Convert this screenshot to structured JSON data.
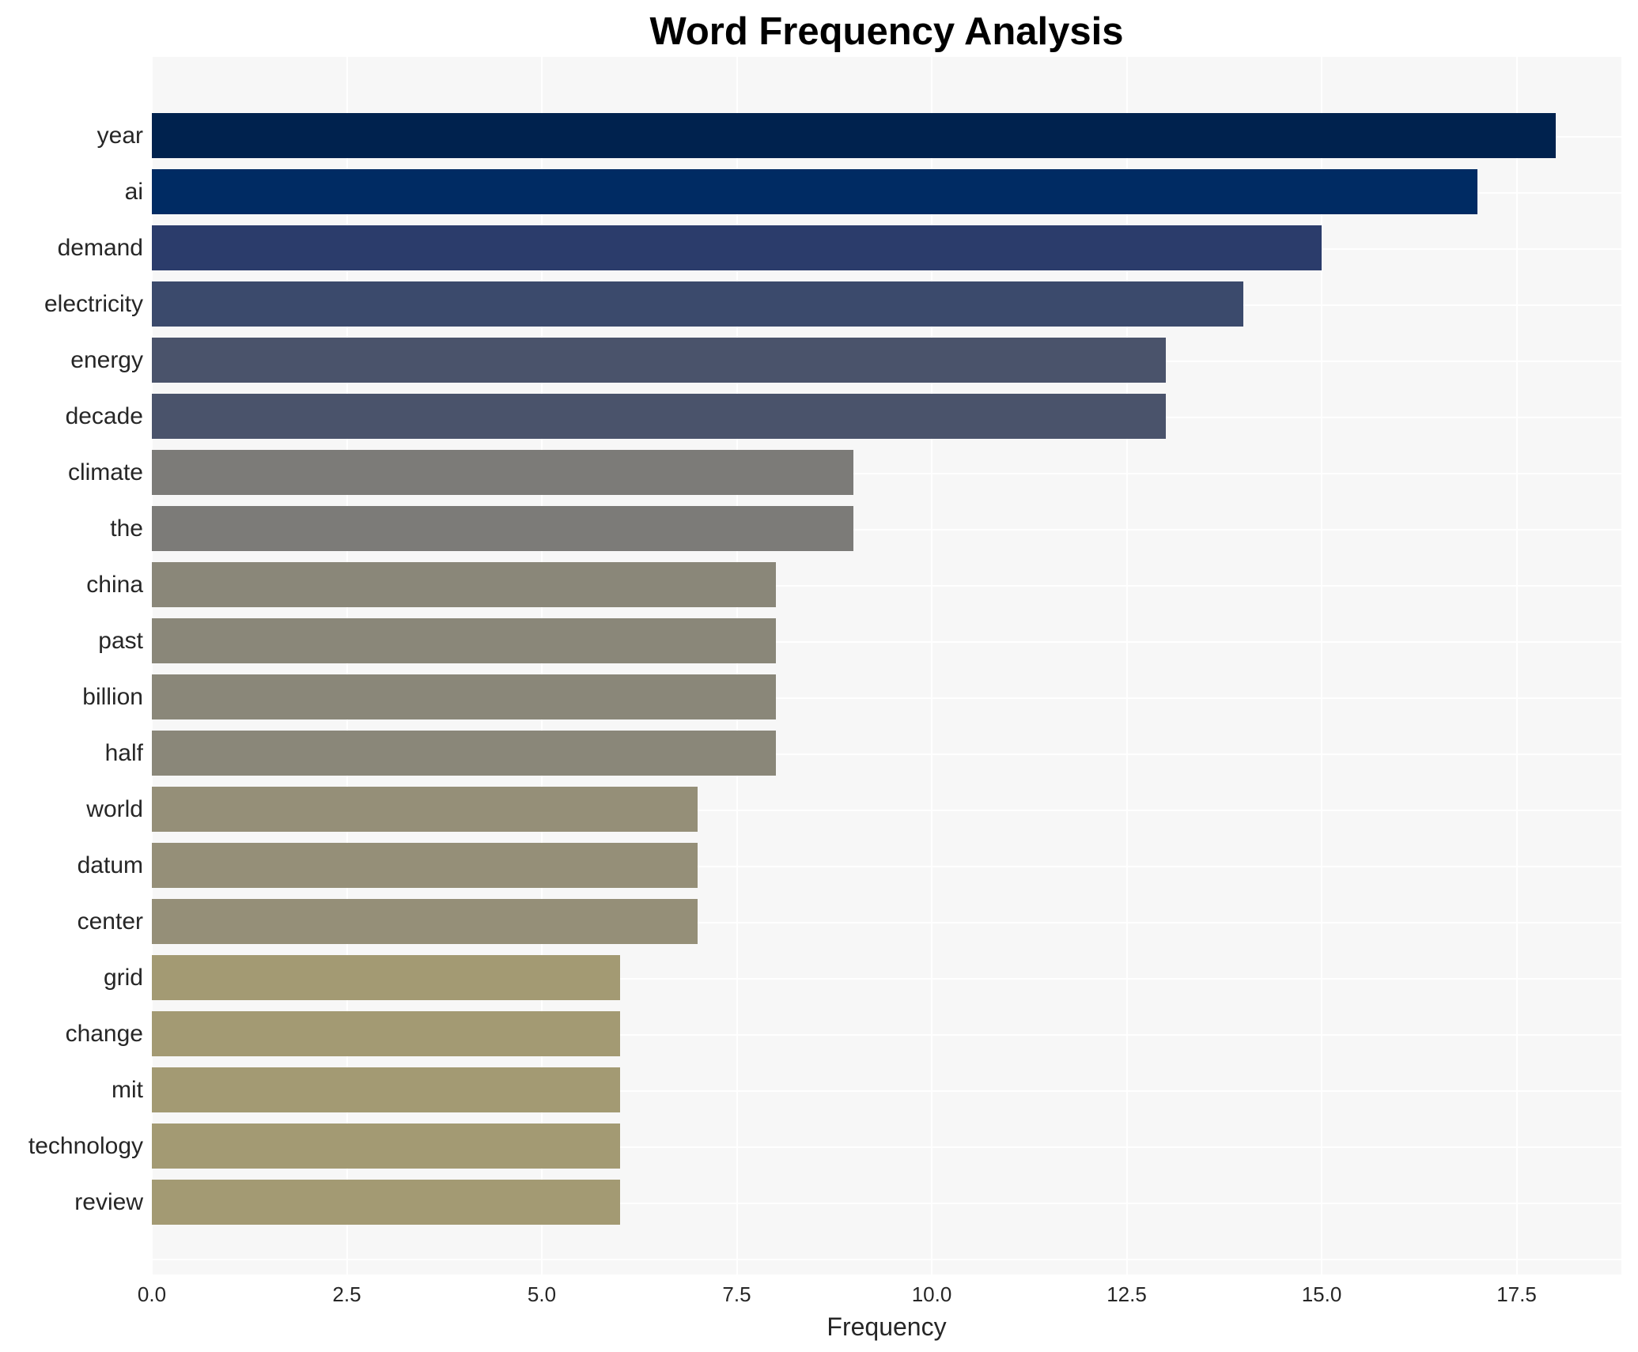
{
  "chart_data": {
    "type": "bar",
    "orientation": "horizontal",
    "title": "Word Frequency Analysis",
    "xlabel": "Frequency",
    "ylabel": "",
    "xlim": [
      0,
      18.9
    ],
    "xticks": [
      "0.0",
      "2.5",
      "5.0",
      "7.5",
      "10.0",
      "12.5",
      "15.0",
      "17.5"
    ],
    "grid": true,
    "legend": null,
    "categories": [
      "year",
      "ai",
      "demand",
      "electricity",
      "energy",
      "decade",
      "climate",
      "the",
      "china",
      "past",
      "billion",
      "half",
      "world",
      "datum",
      "center",
      "grid",
      "change",
      "mit",
      "technology",
      "review"
    ],
    "values": [
      18,
      17,
      15,
      14,
      13,
      13,
      9,
      9,
      8,
      8,
      8,
      8,
      7,
      7,
      7,
      6,
      6,
      6,
      6,
      6
    ],
    "colors": [
      "#00224e",
      "#002b63",
      "#2b3c6b",
      "#3b4a6c",
      "#4a536b",
      "#4a536b",
      "#7c7b78",
      "#7c7b78",
      "#8a8779",
      "#8a8779",
      "#8a8779",
      "#8a8779",
      "#958f78",
      "#958f78",
      "#958f78",
      "#a39a73",
      "#a39a73",
      "#a39a73",
      "#a39a73",
      "#a39a73"
    ]
  }
}
